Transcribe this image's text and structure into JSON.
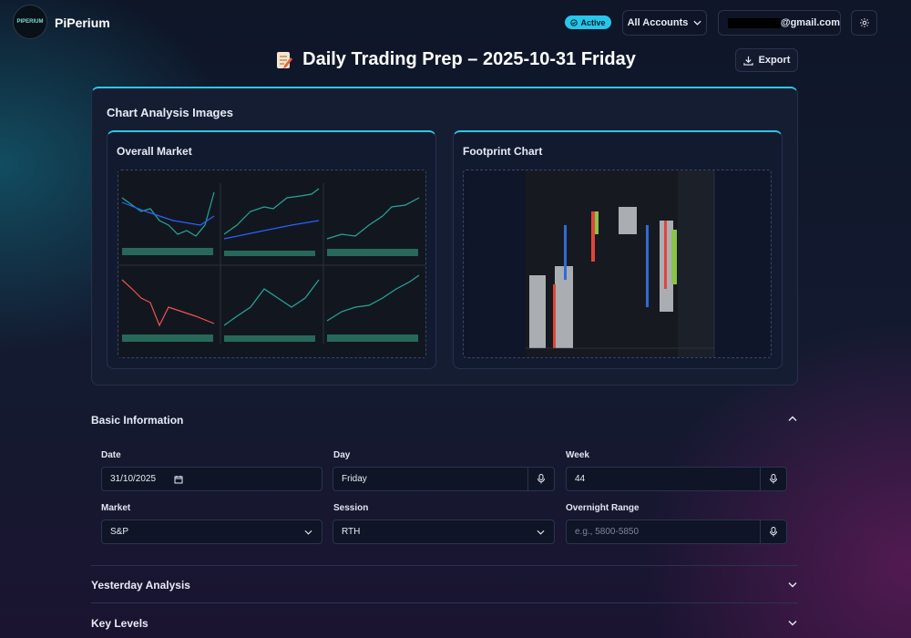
{
  "header": {
    "logo_text": "PIPERIUM",
    "brand": "PiPerium",
    "status": "Active",
    "account_selector": "All Accounts",
    "email": "@gmail.com"
  },
  "page": {
    "title": "Daily Trading Prep – 2025-10-31 Friday",
    "export": "Export"
  },
  "chart_images": {
    "title": "Chart Analysis Images",
    "panels": [
      {
        "title": "Overall Market"
      },
      {
        "title": "Footprint Chart"
      }
    ]
  },
  "basic_information": {
    "title": "Basic Information",
    "fields": [
      {
        "label": "Date",
        "value": "31/10/2025"
      },
      {
        "label": "Day",
        "value": "Friday"
      },
      {
        "label": "Week",
        "value": "44"
      },
      {
        "label": "Market",
        "value": "S&P"
      },
      {
        "label": "Session",
        "value": "RTH"
      },
      {
        "label": "Overnight Range",
        "placeholder": "e.g., 5800-5850"
      }
    ]
  },
  "sections": [
    {
      "title": "Yesterday Analysis"
    },
    {
      "title": "Key Levels"
    }
  ]
}
